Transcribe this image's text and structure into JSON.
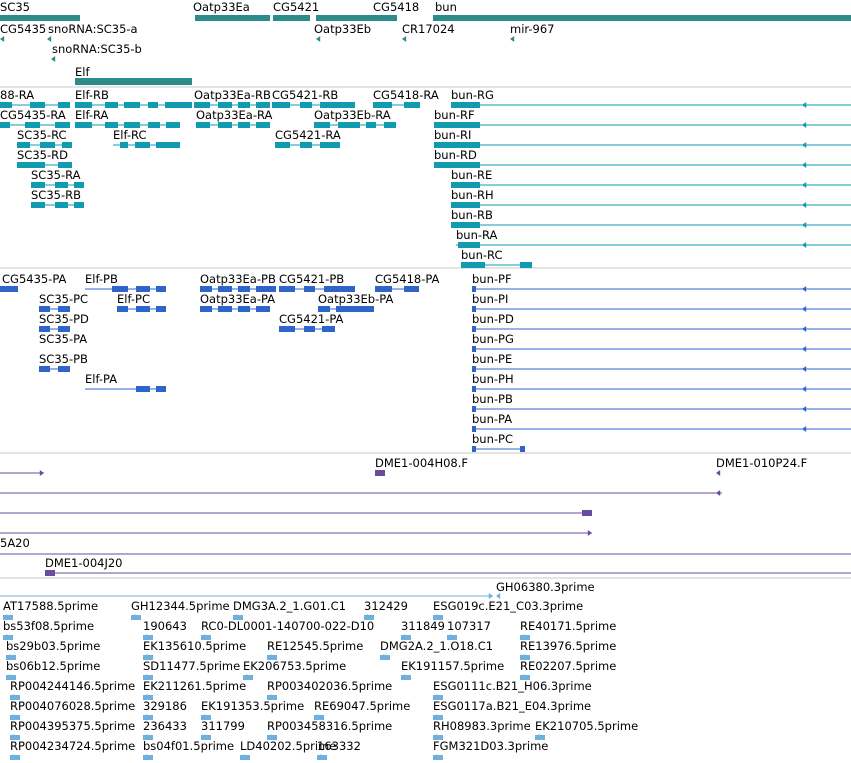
{
  "colors": {
    "gene": "#2c8c8c",
    "transcript": "#119bb0",
    "cds": "#2f64c8",
    "cdna": "#6a4c9c",
    "est": "#6fb0dc",
    "separator": "#c8c8c8"
  },
  "tracks": {
    "genes": [
      "SC35",
      "CG5435",
      "snoRNA:SC35-a",
      "snoRNA:SC35-b",
      "Elf",
      "Oatp33Ea",
      "Oatp33Eb",
      "CG5421",
      "CG5418",
      "CR17024",
      "bun",
      "mir-967"
    ],
    "mrna": [
      "88-RA",
      "CG5435-RA",
      "SC35-RC",
      "SC35-RD",
      "SC35-RA",
      "SC35-RB",
      "Elf-RB",
      "Elf-RA",
      "Elf-RC",
      "Oatp33Ea-RB",
      "Oatp33Ea-RA",
      "CG5421-RB",
      "CG5421-RA",
      "CG5418-RA",
      "Oatp33Eb-RA",
      "bun-RG",
      "bun-RF",
      "bun-RI",
      "bun-RD",
      "bun-RE",
      "bun-RH",
      "bun-RB",
      "bun-RA",
      "bun-RC"
    ],
    "cds": [
      "CG5435-PA",
      "SC35-PC",
      "SC35-PD",
      "SC35-PA",
      "SC35-PB",
      "Elf-PB",
      "Elf-PC",
      "Elf-PA",
      "Oatp33Ea-PB",
      "Oatp33Ea-PA",
      "CG5421-PB",
      "CG5421-PA",
      "CG5418-PA",
      "Oatp33Eb-PA",
      "bun-PF",
      "bun-PI",
      "bun-PD",
      "bun-PG",
      "bun-PE",
      "bun-PH",
      "bun-PB",
      "bun-PA",
      "bun-PC"
    ],
    "cdna": [
      "DME1-004H08.F",
      "DME1-010P24.F",
      "5A20",
      "DME1-004J20"
    ],
    "est": [
      "GH06380.3prime",
      "AT17588.5prime",
      "GH12344.5prime",
      "DMG3A.2_1.G01.C1",
      "312429",
      "ESG019c.E21_C03.3prime",
      "bs53f08.5prime",
      "190643",
      "RC0-DL0001-140700-022-D10",
      "311849",
      "107317",
      "RE40171.5prime",
      "bs29b03.5prime",
      "EK135610.5prime",
      "RE12545.5prime",
      "DMG2A.2_1.O18.C1",
      "RE13976.5prime",
      "bs06b12.5prime",
      "SD11477.5prime",
      "EK206753.5prime",
      "EK191157.5prime",
      "RE02207.5prime",
      "RP004244146.5prime",
      "EK211261.5prime",
      "RP003402036.5prime",
      "ESG0111c.B21_H06.3prime",
      "RP004076028.5prime",
      "329186",
      "EK191353.5prime",
      "RE69047.5prime",
      "ESG0117a.B21_E04.3prime",
      "RP004395375.5prime",
      "236433",
      "311799",
      "RP003458316.5prime",
      "RH08983.3prime",
      "EK210705.5prime",
      "RP004234724.5prime",
      "bs04f01.5prime",
      "LD40202.5prime",
      "163332",
      "FGM321D03.3prime"
    ]
  }
}
